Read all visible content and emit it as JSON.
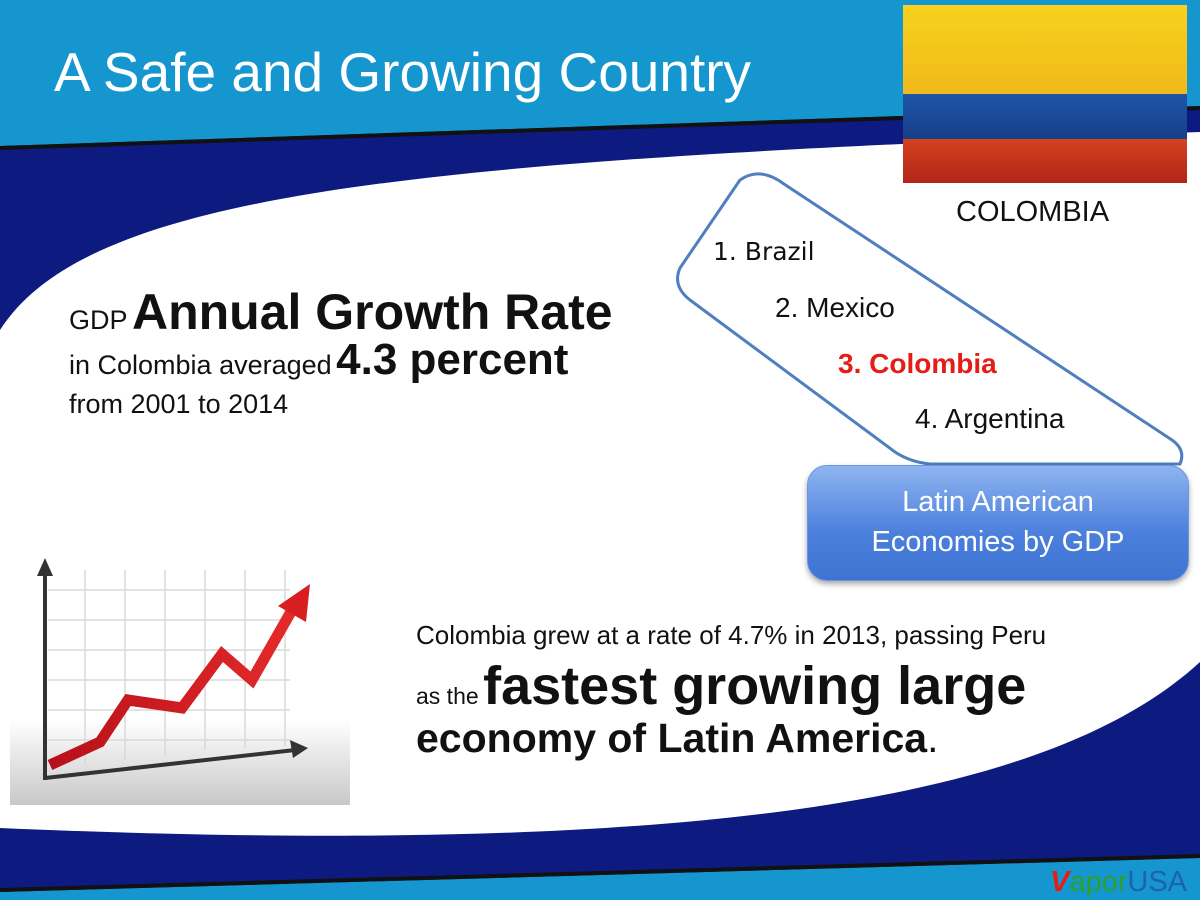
{
  "slide": {
    "title": "A Safe and Growing Country"
  },
  "flag": {
    "caption": "COLOMBIA",
    "colors": {
      "yellow": "#f5c51c",
      "blue": "#1e4f9c",
      "red": "#c8321c"
    }
  },
  "ranking": {
    "items": [
      {
        "label": "1. Brazil"
      },
      {
        "label": "2. Mexico"
      },
      {
        "label": "3. Colombia",
        "highlight": true
      },
      {
        "label": "4. Argentina"
      }
    ],
    "callout_line1": "Latin American",
    "callout_line2": "Economies by GDP"
  },
  "gdp": {
    "prefix": "GDP",
    "heading": "Annual Growth Rate",
    "line2_text": "in Colombia averaged",
    "line2_value": "4.3 percent",
    "line3": "from 2001 to 2014"
  },
  "growth": {
    "line1": "Colombia grew at a rate of 4.7% in 2013, passing Peru",
    "line2_small": "as the",
    "line2_big": "fastest growing large",
    "line3": "economy of Latin America",
    "line3_end": "."
  },
  "logo": {
    "v": "V",
    "apor": "apor",
    "usa": "USA"
  },
  "colors": {
    "header_blue": "#1696cf",
    "navy": "#0d1a80",
    "highlight_red": "#e41d17"
  }
}
